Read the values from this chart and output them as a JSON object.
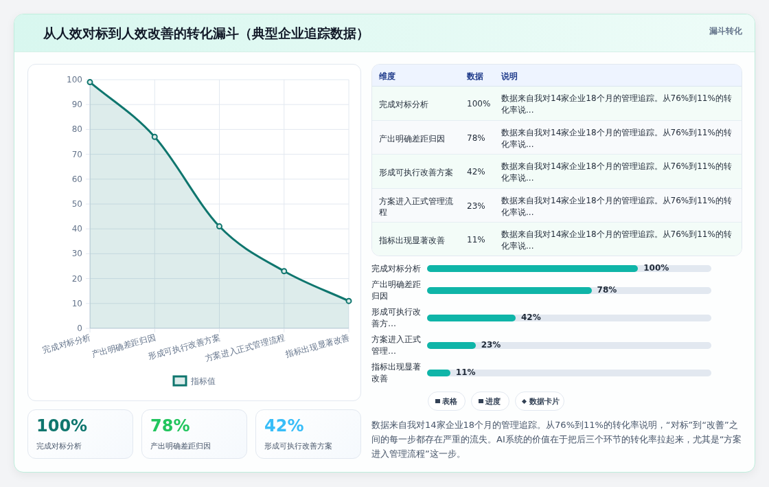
{
  "chart_data": [
    {
      "type": "area",
      "title": "从人效对标到人效改善的转化漏斗（典型企业追踪数据）",
      "annotations": [
        "漏斗转化"
      ],
      "categories": [
        "完成对标分析",
        "产出明确差距归因",
        "形成可执行改善方案",
        "方案进入正式管理流程",
        "指标出现显著改善"
      ],
      "series": [
        {
          "name": "指标值",
          "color": "#0f766e",
          "values": [
            99,
            77,
            41,
            23,
            11
          ]
        }
      ],
      "ylim": [
        0,
        100
      ],
      "yticks": [
        0,
        10,
        20,
        30,
        40,
        50,
        60,
        70,
        80,
        90,
        100
      ],
      "grid": true,
      "legend": "bottom",
      "marker": "circle"
    },
    {
      "type": "other",
      "categories": [
        "完成对标分析",
        "产出明确差距归因",
        "形成可执行改善方案",
        "方案进入正式管理流程",
        "指标出现显著改善"
      ],
      "value_labels": [
        "100%",
        "78%",
        "42%",
        "23%",
        "11%"
      ],
      "annotations": [
        "维度",
        "数据",
        "说明",
        "数据来自我对14家企业18个月的管理追踪。从76%到11%的转化率说...",
        "数据来自我对14家企业18个月的管理追踪。从76%到11%的转化率说...",
        "数据来自我对14家企业18个月的管理追踪。从76%到11%的转化率说...",
        "数据来自我对14家企业18个月的管理追踪。从76%到11%的转化率说...",
        "数据来自我对14家企业18个月的管理追踪。从76%到11%的转化率说..."
      ]
    },
    {
      "type": "bar",
      "orientation": "horizontal",
      "categories": [
        "完成对标分析",
        "产出明确差距归因",
        "形成可执行改善方…",
        "方案进入正式管理…",
        "指标出现显著改善"
      ],
      "values": [
        100,
        78,
        42,
        23,
        11
      ],
      "value_labels": [
        "100%",
        "78%",
        "42%",
        "23%",
        "11%"
      ],
      "color": "#0fb5a8",
      "tick_labels": "y"
    },
    {
      "type": "other",
      "categories": [
        "完成对标分析",
        "产出明确差距归因",
        "形成可执行改善方案"
      ],
      "value_labels": [
        "100%",
        "78%",
        "42%"
      ]
    },
    {
      "type": "other",
      "annotations": [
        "表格",
        "进度",
        "数据卡片",
        "数据来自我对14家企业18个月的管理追踪。从76%到11%的转化率说明，“对标”到“改善”之间的每一步都存在严重的流失。AI系统的价值在于把后三个环节的转化率拉起来，尤其是“方案进入管理流程”这一步。"
      ]
    }
  ]
}
